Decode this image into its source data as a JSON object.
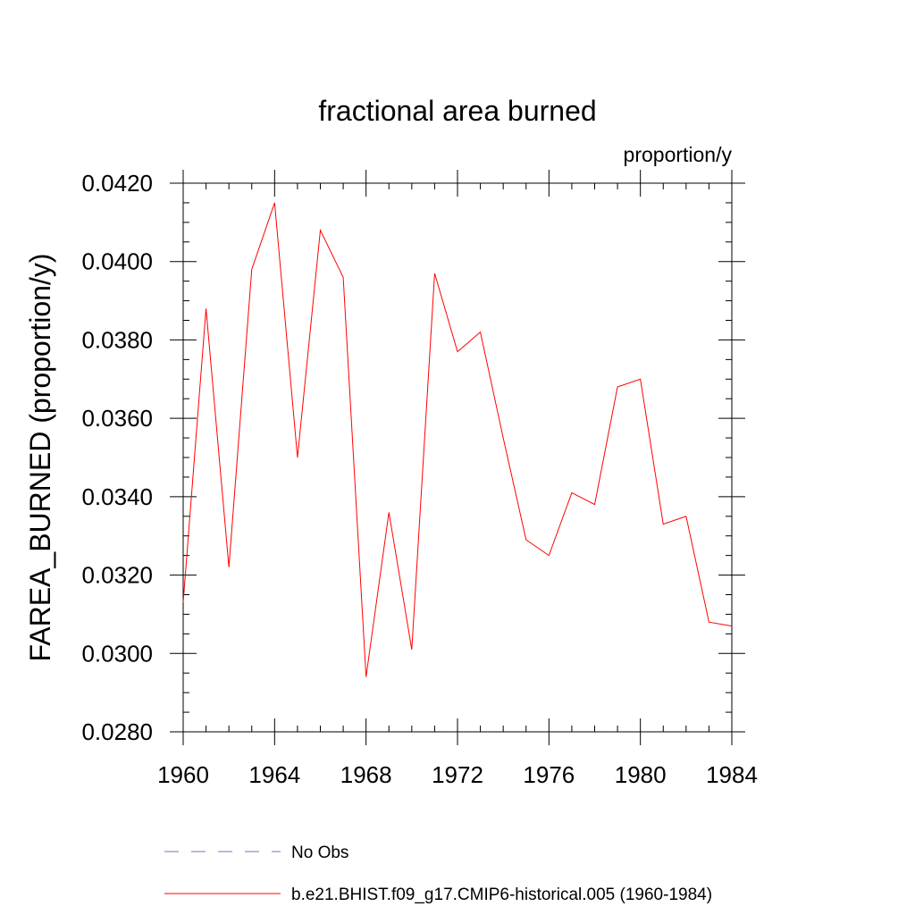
{
  "chart_data": {
    "type": "line",
    "title": "fractional area burned",
    "units_label": "proportion/y",
    "ylabel": "FAREA_BURNED  (proportion/y)",
    "xlabel": "",
    "xlim": [
      1960,
      1984
    ],
    "ylim": [
      0.028,
      0.042
    ],
    "x_ticks": [
      1960,
      1964,
      1968,
      1972,
      1976,
      1980,
      1984
    ],
    "x_tick_labels": [
      "1960",
      "1964",
      "1968",
      "1972",
      "1976",
      "1980",
      "1984"
    ],
    "y_ticks": [
      0.028,
      0.03,
      0.032,
      0.034,
      0.036,
      0.038,
      0.04,
      0.042
    ],
    "y_tick_labels": [
      "0.0280",
      "0.0300",
      "0.0320",
      "0.0340",
      "0.0360",
      "0.0380",
      "0.0400",
      "0.0420"
    ],
    "grid": false,
    "legend_placement": "bottom",
    "series": [
      {
        "name": "b.e21.BHIST.f09_g17.CMIP6-historical.005 (1960-1984)",
        "color": "#ff0000",
        "dash": "solid",
        "x": [
          1960,
          1961,
          1962,
          1963,
          1964,
          1965,
          1966,
          1967,
          1968,
          1969,
          1970,
          1971,
          1972,
          1973,
          1974,
          1975,
          1976,
          1977,
          1978,
          1979,
          1980,
          1981,
          1982,
          1983,
          1984
        ],
        "values": [
          0.0313,
          0.0388,
          0.0322,
          0.0398,
          0.0415,
          0.035,
          0.0408,
          0.0396,
          0.0294,
          0.0336,
          0.0301,
          0.0397,
          0.0377,
          0.0382,
          0.0355,
          0.0329,
          0.0325,
          0.0341,
          0.0338,
          0.0368,
          0.037,
          0.0333,
          0.0335,
          0.0308,
          0.0307
        ]
      }
    ],
    "legend": [
      {
        "label": "No Obs",
        "color": "#7b6fc0",
        "dash": "dashed"
      },
      {
        "label": "b.e21.BHIST.f09_g17.CMIP6-historical.005 (1960-1984)",
        "color": "#ff0000",
        "dash": "solid"
      }
    ]
  }
}
